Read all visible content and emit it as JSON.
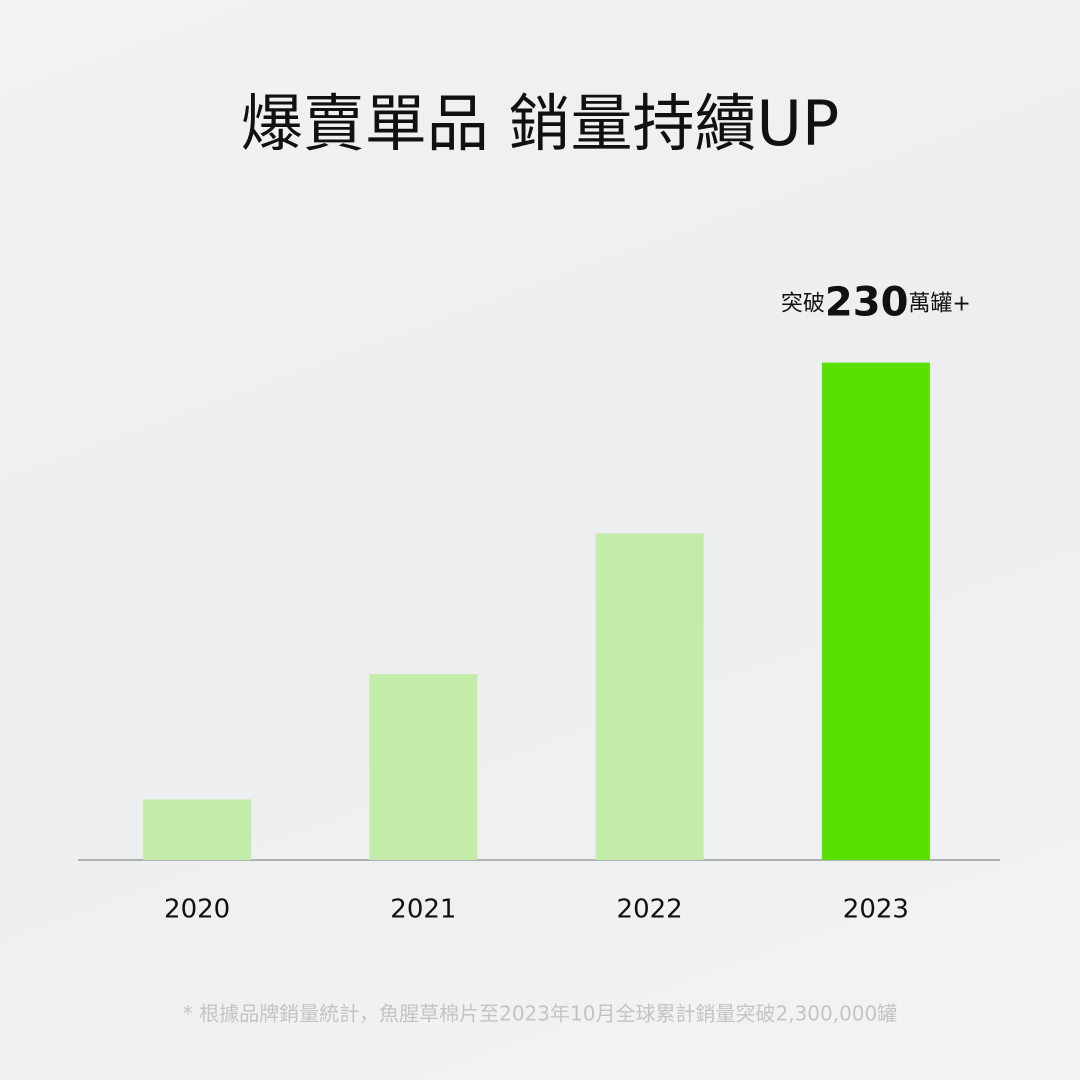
{
  "chart_data": {
    "type": "bar",
    "title": "爆賣單品 銷量持續UP",
    "categories": [
      "2020",
      "2021",
      "2022",
      "2023"
    ],
    "values": [
      28,
      86,
      151,
      230
    ],
    "value_labels": [
      null,
      null,
      null,
      "突破230萬罐+"
    ],
    "colors": [
      "#c3ecaa",
      "#c3ecaa",
      "#c3ecaa",
      "#5ae000"
    ],
    "ylim": [
      0,
      240
    ],
    "grid": false,
    "footnote": "* 根據品牌銷量統計，魚腥草棉片至2023年10月全球累計銷量突破2,300,000罐"
  }
}
